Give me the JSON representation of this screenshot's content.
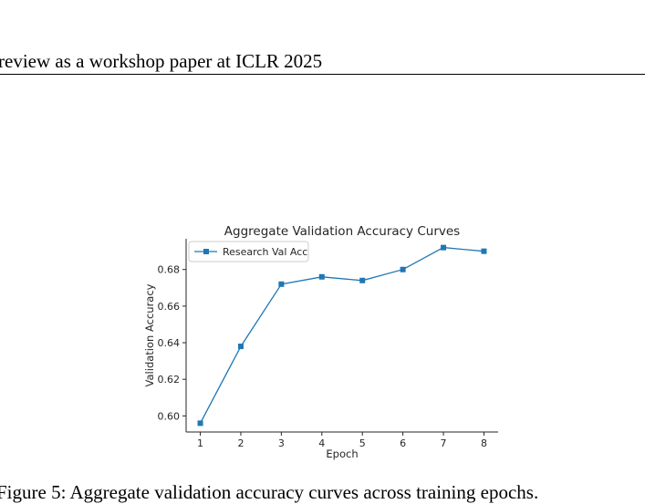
{
  "header": {
    "text": "review as a workshop paper at ICLR 2025"
  },
  "caption": {
    "text": "Figure 5: Aggregate validation accuracy curves across training epochs."
  },
  "chart_data": {
    "type": "line",
    "title": "Aggregate Validation Accuracy Curves",
    "xlabel": "Epoch",
    "ylabel": "Validation Accuracy",
    "x": [
      1,
      2,
      3,
      4,
      5,
      6,
      7,
      8
    ],
    "series": [
      {
        "name": "Research Val Acc",
        "values": [
          0.596,
          0.638,
          0.672,
          0.676,
          0.674,
          0.68,
          0.692,
          0.69
        ],
        "color": "#1f77b4",
        "marker": "square"
      }
    ],
    "xticks": [
      1,
      2,
      3,
      4,
      5,
      6,
      7,
      8
    ],
    "yticks": [
      0.6,
      0.62,
      0.64,
      0.66,
      0.68
    ],
    "ytick_labels": [
      "0.60",
      "0.62",
      "0.64",
      "0.66",
      "0.68"
    ],
    "xlim": [
      0.65,
      8.35
    ],
    "ylim": [
      0.5912,
      0.6968
    ],
    "grid": false,
    "legend": "upper left"
  }
}
